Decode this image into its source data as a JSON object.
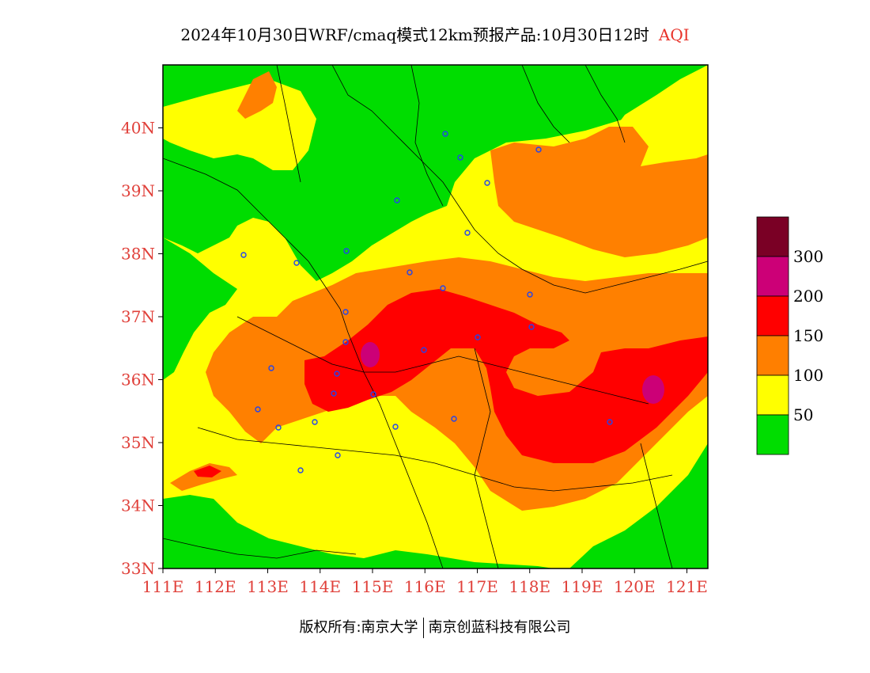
{
  "title": {
    "main": "2024年10月30日WRF/cmaq模式12km预报产品:10月30日12时",
    "product": "AQI"
  },
  "map": {
    "lat_ticks": [
      "40N",
      "39N",
      "38N",
      "37N",
      "36N",
      "35N",
      "34N",
      "33N"
    ],
    "lon_ticks": [
      "111E",
      "112E",
      "113E",
      "114E",
      "115E",
      "116E",
      "117E",
      "118E",
      "119E",
      "120E",
      "121E"
    ],
    "lat_range": [
      33,
      41
    ],
    "lon_range": [
      111,
      121.4
    ]
  },
  "legend": {
    "thresholds": [
      "300",
      "200",
      "150",
      "100",
      "50"
    ],
    "colors": [
      "#7a0025",
      "#cc0077",
      "#ff0000",
      "#ff7f00",
      "#ffff00",
      "#00dd00"
    ]
  },
  "footer": {
    "left": "版权所有:南京大学",
    "right": "南京创蓝科技有限公司"
  }
}
